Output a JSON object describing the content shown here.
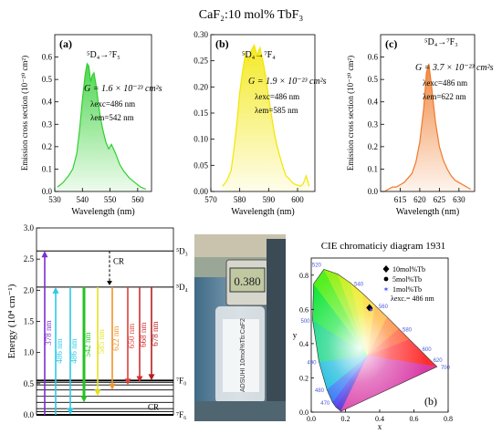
{
  "figure": {
    "title": "CaF₂:10 mol% TbF₃"
  },
  "chart_data": [
    {
      "id": "a",
      "type": "area",
      "panel_label": "(a)",
      "transition": "⁵D₄→⁷F₅",
      "color": "#2fcf2f",
      "xlabel": "Wavelength (nm)",
      "ylabel": "Emission cross section (10⁻²⁰ cm²)",
      "xlim": [
        530,
        565
      ],
      "ylim": [
        0,
        0.7
      ],
      "xticks": [
        530,
        540,
        550,
        560
      ],
      "yticks": [
        0.0,
        0.1,
        0.2,
        0.3,
        0.4,
        0.5,
        0.6
      ],
      "annotations": [
        "G = 1.6 × 10⁻²³ cm²s",
        "λexc=486 nm",
        "λem=542 nm"
      ],
      "x": [
        531,
        533,
        535,
        536.5,
        538,
        539,
        540,
        541,
        541.7,
        542.3,
        543,
        543.6,
        544.2,
        545,
        545.8,
        546.5,
        547.5,
        548.5,
        549.5,
        550.5,
        552,
        553.5,
        555,
        557,
        559,
        561,
        563
      ],
      "y": [
        0.02,
        0.04,
        0.07,
        0.1,
        0.17,
        0.28,
        0.41,
        0.52,
        0.57,
        0.56,
        0.49,
        0.52,
        0.53,
        0.47,
        0.39,
        0.33,
        0.27,
        0.22,
        0.19,
        0.21,
        0.17,
        0.12,
        0.09,
        0.06,
        0.04,
        0.02,
        0.01
      ]
    },
    {
      "id": "b",
      "type": "area",
      "panel_label": "(b)",
      "transition": "⁵D₄→⁷F₄",
      "color": "#f2e600",
      "xlabel": "Wavelength (nm)",
      "ylabel": "",
      "xlim": [
        570,
        606
      ],
      "ylim": [
        0,
        0.3
      ],
      "xticks": [
        570,
        580,
        590,
        600
      ],
      "yticks": [
        0.0,
        0.05,
        0.1,
        0.15,
        0.2,
        0.25,
        0.3
      ],
      "annotations": [
        "G = 1.9 × 10⁻²³ cm²s",
        "λexc=486 nm",
        "λem=585 nm"
      ],
      "x": [
        574,
        575.5,
        577,
        578,
        579,
        580,
        581,
        582,
        583,
        584,
        585,
        586,
        587,
        588,
        589,
        590,
        591,
        592,
        593,
        594,
        595,
        596,
        597,
        598,
        599,
        600,
        601,
        602,
        603,
        604
      ],
      "y": [
        0.01,
        0.02,
        0.04,
        0.08,
        0.13,
        0.19,
        0.23,
        0.265,
        0.25,
        0.27,
        0.28,
        0.26,
        0.275,
        0.25,
        0.22,
        0.18,
        0.145,
        0.11,
        0.085,
        0.065,
        0.045,
        0.03,
        0.025,
        0.018,
        0.014,
        0.012,
        0.01,
        0.015,
        0.03,
        0.01
      ]
    },
    {
      "id": "c",
      "type": "area",
      "panel_label": "(c)",
      "transition": "⁵D₄→⁷F₃",
      "color": "#f07a2a",
      "xlabel": "Wavelength (nm)",
      "ylabel": "Emission cross section (10⁻²⁰ cm²)",
      "xlim": [
        610,
        634
      ],
      "ylim": [
        0,
        0.7
      ],
      "xticks": [
        615,
        620,
        625,
        630
      ],
      "yticks": [
        0.0,
        0.1,
        0.2,
        0.3,
        0.4,
        0.5,
        0.6
      ],
      "annotations": [
        "G = 3.7 × 10⁻²³ cm²s",
        "λexc=486 nm",
        "λem=622 nm"
      ],
      "x": [
        611,
        612,
        613,
        614,
        615,
        616,
        617,
        618,
        619,
        620,
        621,
        621.7,
        622.3,
        623,
        624,
        625,
        626,
        627,
        628,
        629,
        630,
        631,
        632,
        633
      ],
      "y": [
        0.0,
        0.01,
        0.02,
        0.02,
        0.03,
        0.04,
        0.06,
        0.08,
        0.13,
        0.22,
        0.37,
        0.53,
        0.57,
        0.47,
        0.31,
        0.2,
        0.14,
        0.1,
        0.07,
        0.05,
        0.04,
        0.03,
        0.02,
        0.01
      ]
    },
    {
      "id": "energy",
      "type": "diagram",
      "ylabel": "Energy (10⁴ cm⁻¹)",
      "ylim": [
        0,
        3.0
      ],
      "yticks": [
        0.0,
        0.5,
        1.0,
        1.5,
        2.0,
        2.5,
        3.0
      ],
      "levels": [
        {
          "label": "⁵D₃",
          "energy": 2.63
        },
        {
          "label": "⁵D₄",
          "energy": 2.05
        },
        {
          "label": "⁷F₀",
          "energy": 0.55
        },
        {
          "label": "⁷F₆",
          "energy": 0.0
        }
      ],
      "extra_levels": [
        0.52,
        0.48,
        0.4,
        0.3,
        0.2,
        0.1,
        0.05
      ],
      "cr_label": "CR",
      "cr_label_bottom": "CR",
      "arrows": [
        {
          "label": "378 nm",
          "color": "#7b2fd1",
          "dir": "up",
          "from": 0.0,
          "to": 2.63
        },
        {
          "label": "486 nm",
          "color": "#2ec9e6",
          "dir": "up",
          "from": 0.0,
          "to": 2.05
        },
        {
          "label": "486 nm",
          "color": "#2ec9e6",
          "dir": "down",
          "from": 2.05,
          "to": 0.0
        },
        {
          "label": "542 nm",
          "color": "#22c322",
          "dir": "down",
          "from": 2.05,
          "to": 0.2
        },
        {
          "label": "585 nm",
          "color": "#e6e21f",
          "dir": "down",
          "from": 2.05,
          "to": 0.3
        },
        {
          "label": "622 nm",
          "color": "#f0932b",
          "dir": "down",
          "from": 2.05,
          "to": 0.4
        },
        {
          "label": "650 nm",
          "color": "#e0403a",
          "dir": "down",
          "from": 2.05,
          "to": 0.48
        },
        {
          "label": "668 nm",
          "color": "#d12f2f",
          "dir": "down",
          "from": 2.05,
          "to": 0.52
        },
        {
          "label": "678 nm",
          "color": "#b51f1f",
          "dir": "down",
          "from": 2.05,
          "to": 0.55
        }
      ]
    },
    {
      "id": "cie",
      "type": "scatter",
      "panel_label": "(b)",
      "title": "CIE chromaticiy diagram 1931",
      "xlabel": "x",
      "ylabel": "y",
      "xlim": [
        0,
        0.8
      ],
      "ylim": [
        0,
        0.9
      ],
      "xticks": [
        0.0,
        0.2,
        0.4,
        0.6,
        0.8
      ],
      "yticks": [
        0.0,
        0.2,
        0.4,
        0.6,
        0.8
      ],
      "locus_ticks": [
        {
          "label": "470",
          "x": 0.124,
          "y": 0.058
        },
        {
          "label": "480",
          "x": 0.091,
          "y": 0.133
        },
        {
          "label": "490",
          "x": 0.045,
          "y": 0.295
        },
        {
          "label": "500",
          "x": 0.008,
          "y": 0.538
        },
        {
          "label": "520",
          "x": 0.074,
          "y": 0.834
        },
        {
          "label": "540",
          "x": 0.23,
          "y": 0.754
        },
        {
          "label": "560",
          "x": 0.373,
          "y": 0.624
        },
        {
          "label": "580",
          "x": 0.512,
          "y": 0.487
        },
        {
          "label": "600",
          "x": 0.627,
          "y": 0.372
        },
        {
          "label": "620",
          "x": 0.691,
          "y": 0.308
        },
        {
          "label": "700",
          "x": 0.735,
          "y": 0.265
        }
      ],
      "series": [
        {
          "name": "10mol%Tb",
          "marker": "diamond",
          "color": "#000000",
          "x": 0.34,
          "y": 0.61
        },
        {
          "name": "5mol%Tb",
          "marker": "circle",
          "color": "#000000",
          "x": 0.345,
          "y": 0.605
        },
        {
          "name": "1mol%Tb",
          "marker": "star",
          "color": "#4a4aff",
          "x": 0.35,
          "y": 0.6
        }
      ],
      "annotation": "λexc.= 486 nm"
    }
  ],
  "photo": {
    "display": "0.380",
    "label": "ADSUHI 10mol%Tb:CaF2"
  }
}
